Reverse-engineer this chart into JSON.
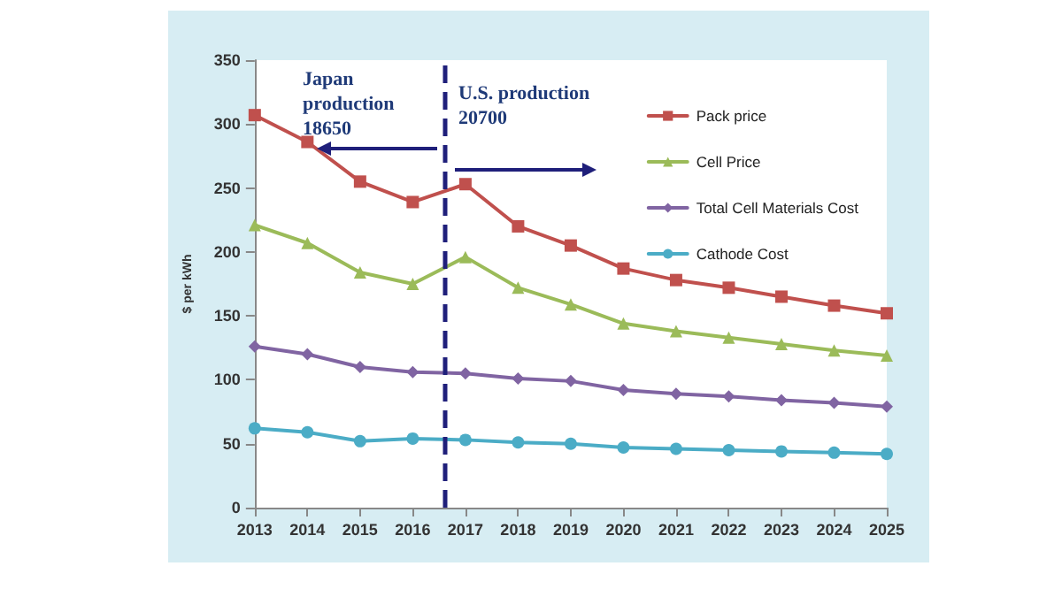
{
  "chart_data": {
    "type": "line",
    "ylabel": "$ per kWh",
    "x": [
      2013,
      2014,
      2015,
      2016,
      2017,
      2018,
      2019,
      2020,
      2021,
      2022,
      2023,
      2024,
      2025
    ],
    "xlim": [
      2013,
      2025
    ],
    "xticks": [
      2013,
      2014,
      2015,
      2016,
      2017,
      2018,
      2019,
      2020,
      2021,
      2022,
      2023,
      2024,
      2025
    ],
    "ylim": [
      0,
      350
    ],
    "yticks": [
      0,
      50,
      100,
      150,
      200,
      250,
      300,
      350
    ],
    "series": [
      {
        "name": "Pack price",
        "color": "#c0504d",
        "marker": "square",
        "values": [
          307,
          286,
          255,
          239,
          253,
          220,
          205,
          187,
          178,
          172,
          165,
          158,
          152
        ]
      },
      {
        "name": "Cell Price",
        "color": "#9bbb59",
        "marker": "triangle",
        "values": [
          221,
          207,
          184,
          175,
          196,
          172,
          159,
          144,
          138,
          133,
          128,
          123,
          119
        ]
      },
      {
        "name": "Total Cell Materials Cost",
        "color": "#8064a2",
        "marker": "diamond",
        "values": [
          126,
          120,
          110,
          106,
          105,
          101,
          99,
          92,
          89,
          87,
          84,
          82,
          79
        ]
      },
      {
        "name": "Cathode Cost",
        "color": "#4bacc6",
        "marker": "circle",
        "values": [
          62,
          59,
          52,
          54,
          53,
          51,
          50,
          47,
          46,
          45,
          44,
          43,
          42
        ]
      }
    ],
    "ref_lines": [
      {
        "axis": "x",
        "value": 2016.6,
        "color": "#1f1f7a",
        "line_style": "dashed"
      }
    ],
    "annotations": [
      "Japan production 18650",
      "U.S. production 20700"
    ],
    "grid": false,
    "legend": "top right",
    "line_style": "solid"
  }
}
